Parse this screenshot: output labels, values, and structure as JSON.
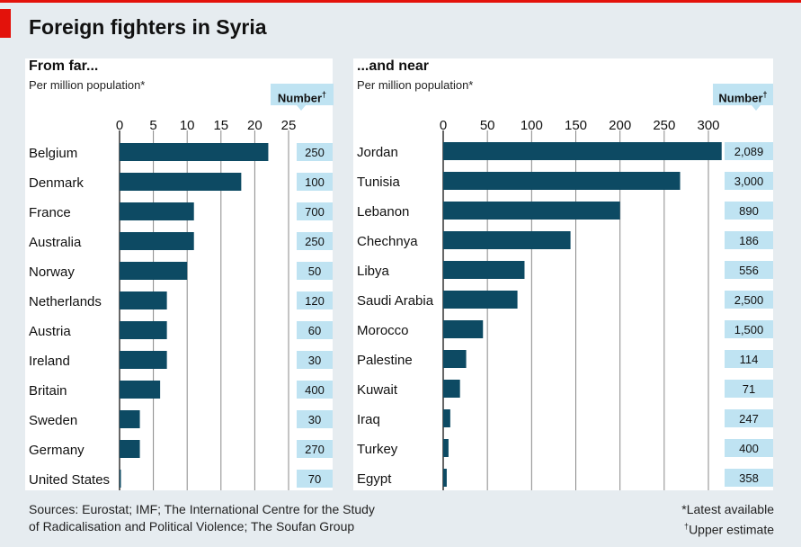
{
  "title": "Foreign fighters in Syria",
  "colors": {
    "bar": "#0d4a63",
    "number_box": "#bfe3f2",
    "accent_red": "#e3120b",
    "gridline": "#888888"
  },
  "number_header": {
    "label": "Number",
    "mark": "†"
  },
  "footer": {
    "sources_line1": "Sources: Eurostat; IMF; The International Centre for the Study",
    "sources_line2": "of Radicalisation and Political Violence; The Soufan Group",
    "note1": "*Latest available",
    "note2_mark": "†",
    "note2": "Upper estimate"
  },
  "chart_data": [
    {
      "type": "bar",
      "orientation": "horizontal",
      "title": "From far...",
      "subtitle": "Per million population*",
      "xlim": [
        0,
        25
      ],
      "xticks": [
        0,
        5,
        10,
        15,
        20,
        25
      ],
      "grid": true,
      "categories": [
        "Belgium",
        "Denmark",
        "France",
        "Australia",
        "Norway",
        "Netherlands",
        "Austria",
        "Ireland",
        "Britain",
        "Sweden",
        "Germany",
        "United States"
      ],
      "values": [
        22,
        18,
        11,
        11,
        10,
        7,
        7,
        7,
        6,
        3,
        3,
        0.2
      ],
      "numbers": [
        "250",
        "100",
        "700",
        "250",
        "50",
        "120",
        "60",
        "30",
        "400",
        "30",
        "270",
        "70"
      ]
    },
    {
      "type": "bar",
      "orientation": "horizontal",
      "title": "...and near",
      "subtitle": "Per million population*",
      "xlim": [
        0,
        300
      ],
      "xticks": [
        0,
        50,
        100,
        150,
        200,
        250,
        300
      ],
      "grid": true,
      "categories": [
        "Jordan",
        "Tunisia",
        "Lebanon",
        "Chechnya",
        "Libya",
        "Saudi Arabia",
        "Morocco",
        "Palestine",
        "Kuwait",
        "Iraq",
        "Turkey",
        "Egypt"
      ],
      "values": [
        315,
        268,
        200,
        144,
        92,
        84,
        45,
        26,
        19,
        8,
        6,
        4
      ],
      "numbers": [
        "2,089",
        "3,000",
        "890",
        "186",
        "556",
        "2,500",
        "1,500",
        "114",
        "71",
        "247",
        "400",
        "358"
      ]
    }
  ]
}
